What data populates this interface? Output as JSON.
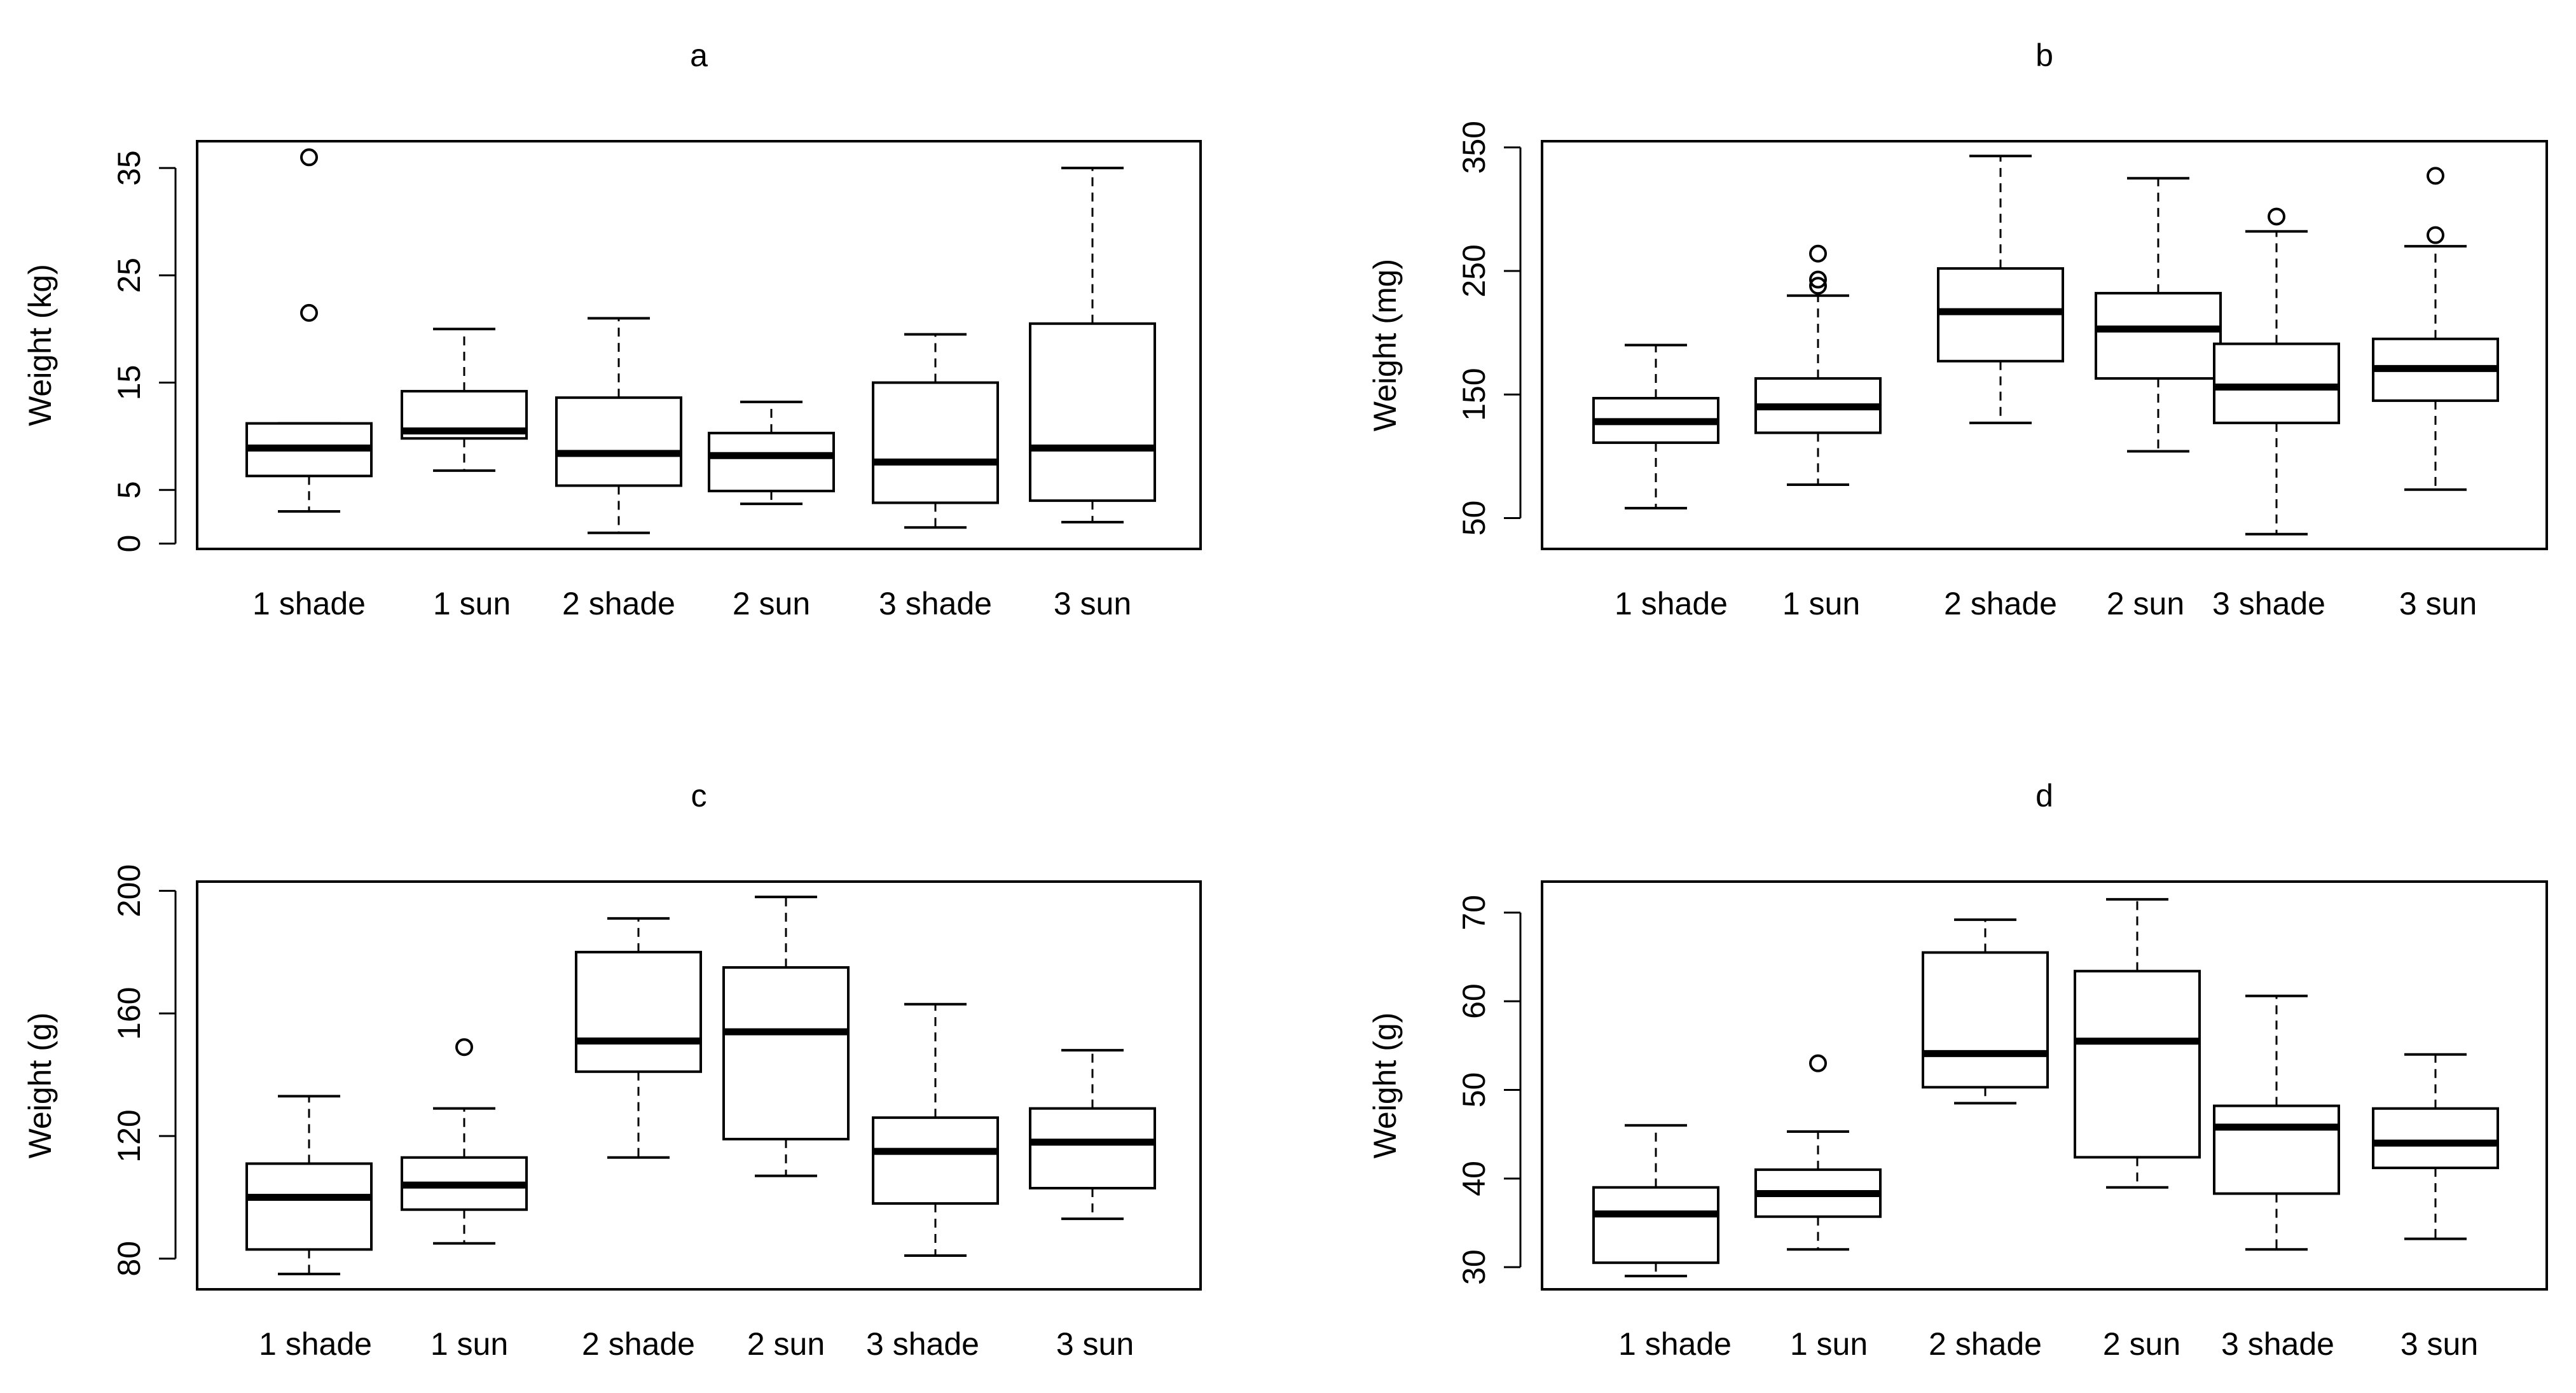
{
  "chart_data": [
    {
      "type": "boxplot",
      "title": "a",
      "ylabel": "Weight (kg)",
      "xlabel": "",
      "ylim": [
        -0.5,
        37.5
      ],
      "yticks": [
        0,
        5,
        15,
        25,
        35
      ],
      "categories": [
        "1 shade",
        "1 sun",
        "2 shade",
        "2 sun",
        "3 shade",
        "3 sun"
      ],
      "boxes": [
        {
          "whisker_low": 3,
          "q1": 6.3,
          "median": 8.9,
          "q3": 11.2,
          "whisker_high": 11.2,
          "outliers": [
            21.5,
            36
          ]
        },
        {
          "whisker_low": 6.8,
          "q1": 9.8,
          "median": 10.5,
          "q3": 14.2,
          "whisker_high": 20,
          "outliers": []
        },
        {
          "whisker_low": 1,
          "q1": 5.4,
          "median": 8.4,
          "q3": 13.6,
          "whisker_high": 21,
          "outliers": []
        },
        {
          "whisker_low": 3.7,
          "q1": 4.9,
          "median": 8.2,
          "q3": 10.3,
          "whisker_high": 13.2,
          "outliers": []
        },
        {
          "whisker_low": 1.5,
          "q1": 3.8,
          "median": 7.6,
          "q3": 15,
          "whisker_high": 19.5,
          "outliers": []
        },
        {
          "whisker_low": 2,
          "q1": 4,
          "median": 8.9,
          "q3": 20.5,
          "whisker_high": 35,
          "outliers": []
        }
      ]
    },
    {
      "type": "boxplot",
      "title": "b",
      "ylabel": "Weight (mg)",
      "xlabel": "",
      "ylim": [
        25,
        355
      ],
      "yticks": [
        50,
        150,
        250,
        350
      ],
      "categories": [
        "1 shade",
        "1 sun",
        "2 shade",
        "2 sun",
        "3 shade",
        "3 sun"
      ],
      "boxes": [
        {
          "whisker_low": 58,
          "q1": 111,
          "median": 128,
          "q3": 147,
          "whisker_high": 190,
          "outliers": []
        },
        {
          "whisker_low": 77,
          "q1": 119,
          "median": 140,
          "q3": 163,
          "whisker_high": 230,
          "outliers": [
            238,
            243,
            264
          ]
        },
        {
          "whisker_low": 127,
          "q1": 177,
          "median": 217,
          "q3": 252,
          "whisker_high": 343,
          "outliers": []
        },
        {
          "whisker_low": 104,
          "q1": 163,
          "median": 203,
          "q3": 232,
          "whisker_high": 325,
          "outliers": []
        },
        {
          "whisker_low": 37,
          "q1": 127,
          "median": 156,
          "q3": 191,
          "whisker_high": 282,
          "outliers": [
            294
          ]
        },
        {
          "whisker_low": 73,
          "q1": 145,
          "median": 171,
          "q3": 195,
          "whisker_high": 270,
          "outliers": [
            279,
            327
          ]
        }
      ]
    },
    {
      "type": "boxplot",
      "title": "c",
      "ylabel": "Weight (g)",
      "xlabel": "",
      "ylim": [
        70,
        203
      ],
      "yticks": [
        80,
        120,
        160,
        200
      ],
      "categories": [
        "1 shade",
        "1 sun",
        "2 shade",
        "2 sun",
        "3 shade",
        "3 sun"
      ],
      "boxes": [
        {
          "whisker_low": 75,
          "q1": 83,
          "median": 100,
          "q3": 111,
          "whisker_high": 133,
          "outliers": []
        },
        {
          "whisker_low": 85,
          "q1": 96,
          "median": 104,
          "q3": 113,
          "whisker_high": 129,
          "outliers": [
            149
          ]
        },
        {
          "whisker_low": 113,
          "q1": 141,
          "median": 151,
          "q3": 180,
          "whisker_high": 191,
          "outliers": []
        },
        {
          "whisker_low": 107,
          "q1": 119,
          "median": 154,
          "q3": 175,
          "whisker_high": 198,
          "outliers": []
        },
        {
          "whisker_low": 81,
          "q1": 98,
          "median": 115,
          "q3": 126,
          "whisker_high": 163,
          "outliers": []
        },
        {
          "whisker_low": 93,
          "q1": 103,
          "median": 118,
          "q3": 129,
          "whisker_high": 148,
          "outliers": []
        }
      ]
    },
    {
      "type": "boxplot",
      "title": "d",
      "ylabel": "Weight (g)",
      "xlabel": "",
      "ylim": [
        27.5,
        73.5
      ],
      "yticks": [
        30,
        40,
        50,
        60,
        70
      ],
      "categories": [
        "1 shade",
        "1 sun",
        "2 shade",
        "2 sun",
        "3 shade",
        "3 sun"
      ],
      "boxes": [
        {
          "whisker_low": 29,
          "q1": 30.5,
          "median": 36,
          "q3": 39,
          "whisker_high": 46,
          "outliers": []
        },
        {
          "whisker_low": 32,
          "q1": 35.7,
          "median": 38.3,
          "q3": 41,
          "whisker_high": 45.3,
          "outliers": [
            53
          ]
        },
        {
          "whisker_low": 48.5,
          "q1": 50.3,
          "median": 54.1,
          "q3": 65.5,
          "whisker_high": 69.2,
          "outliers": []
        },
        {
          "whisker_low": 39,
          "q1": 42.4,
          "median": 55.5,
          "q3": 63.4,
          "whisker_high": 71.5,
          "outliers": []
        },
        {
          "whisker_low": 32,
          "q1": 38.3,
          "median": 45.8,
          "q3": 48.2,
          "whisker_high": 60.6,
          "outliers": []
        },
        {
          "whisker_low": 33.2,
          "q1": 41.2,
          "median": 44,
          "q3": 47.9,
          "whisker_high": 54,
          "outliers": []
        }
      ]
    }
  ]
}
